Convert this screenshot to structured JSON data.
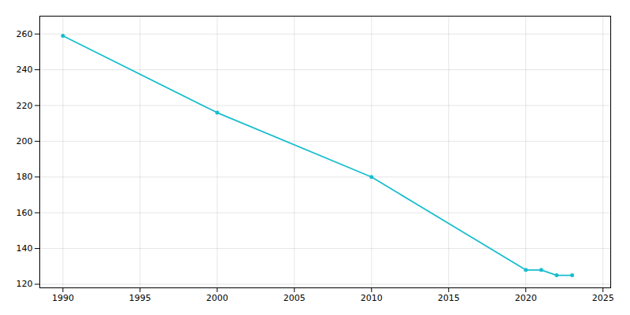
{
  "chart_data": {
    "type": "line",
    "x": [
      1990,
      2000,
      2010,
      2020,
      2021,
      2022,
      2023
    ],
    "values": [
      259,
      216,
      180,
      128,
      128,
      125,
      125
    ],
    "color": "#17becf",
    "marker": "circle",
    "xlim": [
      1988.5,
      2025.5
    ],
    "ylim": [
      118,
      270
    ],
    "xticks": [
      1990,
      1995,
      2000,
      2005,
      2010,
      2015,
      2020,
      2025
    ],
    "yticks": [
      120,
      140,
      160,
      180,
      200,
      220,
      240,
      260
    ],
    "grid": true
  }
}
